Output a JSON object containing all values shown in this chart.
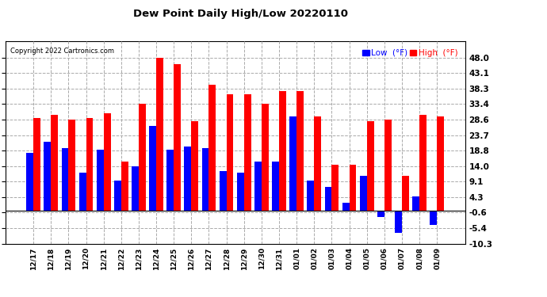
{
  "title": "Dew Point Daily High/Low 20220110",
  "copyright": "Copyright 2022 Cartronics.com",
  "ylabel_right_ticks": [
    48.0,
    43.1,
    38.3,
    33.4,
    28.6,
    23.7,
    18.8,
    14.0,
    9.1,
    4.3,
    -0.6,
    -5.4,
    -10.3
  ],
  "ylim": [
    -10.3,
    53.0
  ],
  "background_color": "#ffffff",
  "plot_bg_color": "#ffffff",
  "grid_color": "#aaaaaa",
  "bar_color_high": "#ff0000",
  "bar_color_low": "#0000ff",
  "dates": [
    "12/17",
    "12/18",
    "12/19",
    "12/20",
    "12/21",
    "12/22",
    "12/23",
    "12/24",
    "12/25",
    "12/26",
    "12/27",
    "12/28",
    "12/29",
    "12/30",
    "12/31",
    "01/01",
    "01/02",
    "01/03",
    "01/04",
    "01/05",
    "01/06",
    "01/07",
    "01/08",
    "01/09"
  ],
  "high_values": [
    29.0,
    30.0,
    28.6,
    29.0,
    30.5,
    15.5,
    33.4,
    48.0,
    46.0,
    28.0,
    39.5,
    36.5,
    36.5,
    33.5,
    37.5,
    37.5,
    29.5,
    14.5,
    14.5,
    28.0,
    28.6,
    11.0,
    30.0,
    29.5
  ],
  "low_values": [
    18.0,
    21.5,
    19.5,
    12.0,
    19.0,
    9.5,
    14.0,
    26.5,
    19.0,
    20.0,
    19.5,
    12.5,
    12.0,
    15.5,
    15.5,
    29.5,
    9.5,
    7.5,
    2.5,
    11.0,
    -2.0,
    -7.0,
    4.5,
    -4.5
  ]
}
